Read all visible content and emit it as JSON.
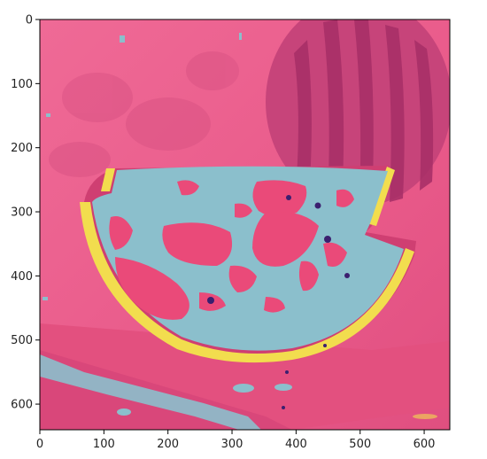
{
  "figure": {
    "description_free": true,
    "colors": {
      "background": "#ec5f8e",
      "fruit_mask": "#8bbfcc",
      "rind": "#f2dd4e",
      "red_spots": "#ea4a79",
      "dark_spot": "#3b1f6f",
      "stripe_dark": "#b8366a",
      "axis": "#000000"
    }
  },
  "chart_data": {
    "type": "heatmap",
    "title": "",
    "xlabel": "",
    "ylabel": "",
    "xlim": [
      0,
      640
    ],
    "ylim": [
      640,
      0
    ],
    "x_ticks": [
      "0",
      "100",
      "200",
      "300",
      "400",
      "500",
      "600"
    ],
    "y_ticks": [
      "0",
      "100",
      "200",
      "300",
      "400",
      "500",
      "600"
    ],
    "x_tick_values": [
      0,
      100,
      200,
      300,
      400,
      500,
      600
    ],
    "y_tick_values": [
      0,
      100,
      200,
      300,
      400,
      500,
      600
    ],
    "grid": false,
    "legend": "none"
  }
}
